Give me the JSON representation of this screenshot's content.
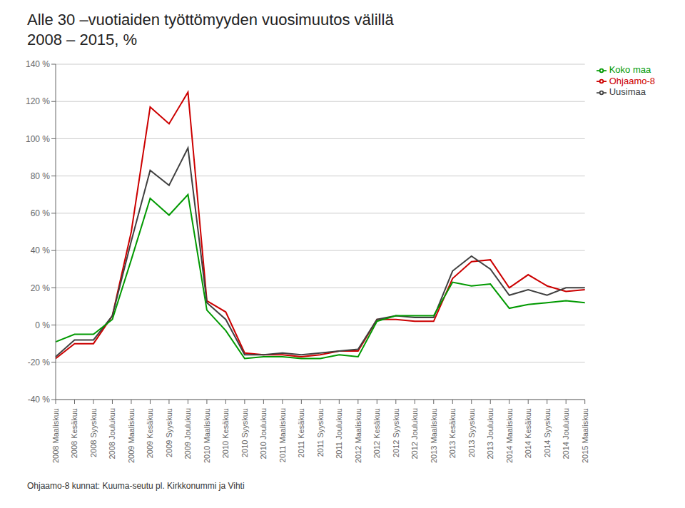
{
  "chart_data": {
    "type": "line",
    "title": "Alle 30 –vuotiaiden työttömyyden vuosimuutos välillä\n2008 – 2015, %",
    "subtitle": "Ohjaamo-8 kunnat: Kuuma-seutu pl. Kirkkonummi ja Vihti",
    "categories": [
      "2008 Maaliskuu",
      "2008 Kesäkuu",
      "2008 Syyskuu",
      "2008 Joulukuu",
      "2009 Maaliskuu",
      "2009 Kesäkuu",
      "2009 Syyskuu",
      "2009 Joulukuu",
      "2010 Maaliskuu",
      "2010 Kesäkuu",
      "2010 Syyskuu",
      "2010 Joulukuu",
      "2011 Maaliskuu",
      "2011 Kesäkuu",
      "2011 Syyskuu",
      "2011 Joulukuu",
      "2012 Maaliskuu",
      "2012 Kesäkuu",
      "2012 Syyskuu",
      "2012 Joulukuu",
      "2013 Maaliskuu",
      "2013 Kesäkuu",
      "2013 Syyskuu",
      "2013 Joulukuu",
      "2014 Maaliskuu",
      "2014 Kesäkuu",
      "2014 Syyskuu",
      "2014 Joulukuu",
      "2015 Maaliskuu"
    ],
    "series": [
      {
        "name": "Ohjaamo-8",
        "color": "#cc0000",
        "values": [
          -18,
          -10,
          -10,
          5,
          50,
          117,
          108,
          125,
          13,
          7,
          -15,
          -16,
          -16,
          -17,
          -16,
          -14,
          -14,
          3,
          3,
          2,
          2,
          25,
          34,
          35,
          20,
          27,
          21,
          18,
          19
        ]
      },
      {
        "name": "Uusimaa",
        "color": "#404040",
        "values": [
          -17,
          -8,
          -8,
          5,
          45,
          83,
          75,
          95,
          12,
          3,
          -16,
          -16,
          -15,
          -16,
          -15,
          -14,
          -13,
          3,
          5,
          4,
          4,
          29,
          37,
          30,
          16,
          19,
          16,
          20,
          20
        ]
      },
      {
        "name": "Koko maa",
        "color": "#009900",
        "values": [
          -9,
          -5,
          -5,
          3,
          35,
          68,
          59,
          70,
          8,
          -3,
          -18,
          -17,
          -17,
          -18,
          -18,
          -16,
          -17,
          2,
          5,
          5,
          5,
          23,
          21,
          22,
          9,
          11,
          12,
          13,
          12
        ]
      }
    ],
    "ylim": [
      -40,
      140
    ],
    "yticks": [
      {
        "value": -40,
        "label": "-40 %"
      },
      {
        "value": -20,
        "label": "-20 %"
      },
      {
        "value": 0,
        "label": "0 %"
      },
      {
        "value": 20,
        "label": "20 %"
      },
      {
        "value": 40,
        "label": "40 %"
      },
      {
        "value": 60,
        "label": "60 %"
      },
      {
        "value": 80,
        "label": "80 %"
      },
      {
        "value": 100,
        "label": "100 %"
      },
      {
        "value": 120,
        "label": "120 %"
      },
      {
        "value": 140,
        "label": "140 %"
      }
    ],
    "grid": true,
    "legend": "upper right"
  }
}
